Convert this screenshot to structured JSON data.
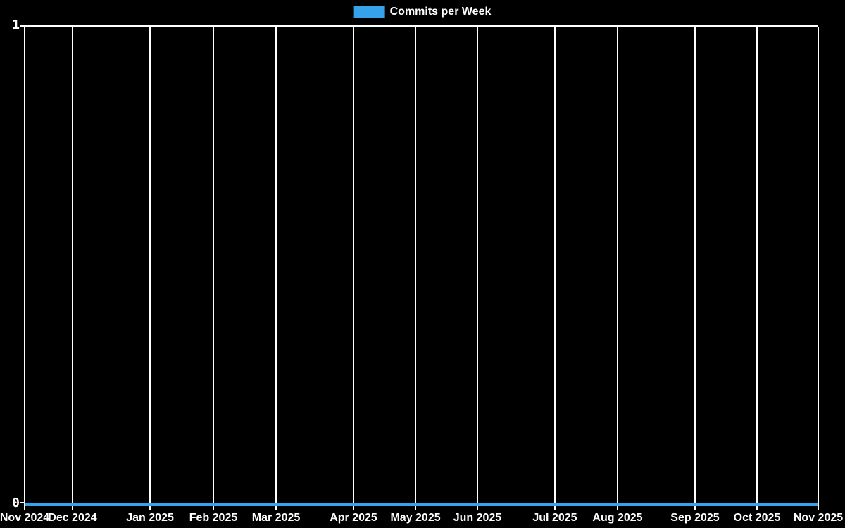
{
  "page": {
    "background": "#000000",
    "text_color": "#ffffff",
    "gridline_color": "#ffffff",
    "accent_color": "#36a2eb"
  },
  "legend": {
    "label": "Commits per Week",
    "swatch_color": "#36a2eb",
    "position": "top-center"
  },
  "y_axis": {
    "max_label": "1",
    "min_label": "0"
  },
  "chart_data": {
    "type": "line",
    "title": "Commits per Week",
    "xlabel": "",
    "ylabel": "",
    "ylim": [
      0,
      1
    ],
    "y_ticks": [
      "0",
      "1"
    ],
    "x_ticks": [
      "Nov 2024",
      "Dec 2024",
      "Jan 2025",
      "Feb 2025",
      "Mar 2025",
      "Apr 2025",
      "May 2025",
      "Jun 2025",
      "Jul 2025",
      "Aug 2025",
      "Sep 2025",
      "Oct 2025",
      "Nov 2025"
    ],
    "tick_positions": [
      0.0,
      0.0603,
      0.158,
      0.2378,
      0.3168,
      0.4144,
      0.4925,
      0.5705,
      0.6681,
      0.7471,
      0.8447,
      0.9228,
      1.0
    ],
    "series": [
      {
        "name": "Commits per Week",
        "color": "#36a2eb",
        "values": [
          0,
          0,
          0,
          0,
          0,
          0,
          0,
          0,
          0,
          0,
          0,
          0,
          0
        ]
      }
    ],
    "grid": "vertical-only",
    "legend_position": "top-center",
    "background": "#000000"
  }
}
